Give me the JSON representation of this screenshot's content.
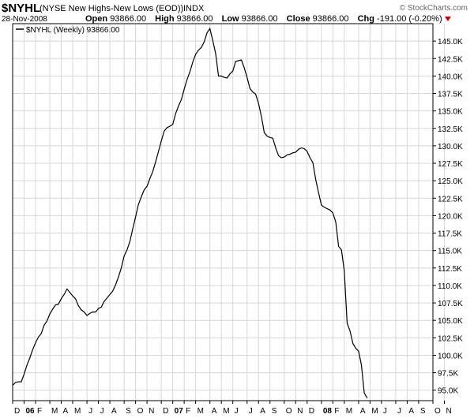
{
  "header": {
    "symbol": "$NYHL",
    "description": "(NYSE New Highs-New Lows (EOD))",
    "exchange": "INDX",
    "source": "© StockCharts.com",
    "date": "28-Nov-2008",
    "open_label": "Open",
    "open_value": "93866.00",
    "high_label": "High",
    "high_value": "93866.00",
    "low_label": "Low",
    "low_value": "93866.00",
    "close_label": "Close",
    "close_value": "93866.00",
    "chg_label": "Chg",
    "chg_value": "-191.00 (-0.20%)"
  },
  "chart_data": {
    "type": "line",
    "legend": "$NYHL (Weekly) 93866.00",
    "legend_position": "top-left",
    "grid": true,
    "ylim": [
      93500,
      147500
    ],
    "yticks": [
      95000,
      97500,
      100000,
      102500,
      105000,
      107500,
      110000,
      112500,
      115000,
      117500,
      120000,
      122500,
      125000,
      127500,
      130000,
      132500,
      135000,
      137500,
      140000,
      142500,
      145000
    ],
    "ytick_labels": [
      "95.0K",
      "97.5K",
      "100.0K",
      "102.5K",
      "105.0K",
      "107.5K",
      "110.0K",
      "112.5K",
      "115.0K",
      "117.5K",
      "120.0K",
      "122.5K",
      "125.0K",
      "127.5K",
      "130.0K",
      "132.5K",
      "135.0K",
      "137.5K",
      "140.0K",
      "142.5K",
      "145.0K"
    ],
    "xlim": [
      0,
      147
    ],
    "month_labels": [
      {
        "label": "D",
        "index": 0
      },
      {
        "label": "06",
        "index": 4,
        "bold": true
      },
      {
        "label": "F",
        "index": 8
      },
      {
        "label": "M",
        "index": 13
      },
      {
        "label": "A",
        "index": 17
      },
      {
        "label": "M",
        "index": 21
      },
      {
        "label": "J",
        "index": 26
      },
      {
        "label": "J",
        "index": 30
      },
      {
        "label": "A",
        "index": 34
      },
      {
        "label": "S",
        "index": 39
      },
      {
        "label": "O",
        "index": 43
      },
      {
        "label": "N",
        "index": 47
      },
      {
        "label": "D",
        "index": 52
      },
      {
        "label": "07",
        "index": 56,
        "bold": true
      },
      {
        "label": "F",
        "index": 60
      },
      {
        "label": "M",
        "index": 64
      },
      {
        "label": "A",
        "index": 69
      },
      {
        "label": "M",
        "index": 73
      },
      {
        "label": "J",
        "index": 77
      },
      {
        "label": "J",
        "index": 82
      },
      {
        "label": "A",
        "index": 86
      },
      {
        "label": "S",
        "index": 90
      },
      {
        "label": "O",
        "index": 95
      },
      {
        "label": "N",
        "index": 99
      },
      {
        "label": "D",
        "index": 103
      },
      {
        "label": "08",
        "index": 108,
        "bold": true
      },
      {
        "label": "F",
        "index": 112
      },
      {
        "label": "M",
        "index": 116
      },
      {
        "label": "A",
        "index": 121
      },
      {
        "label": "M",
        "index": 125
      },
      {
        "label": "J",
        "index": 129
      },
      {
        "label": "J",
        "index": 134
      },
      {
        "label": "A",
        "index": 138
      },
      {
        "label": "S",
        "index": 142
      },
      {
        "label": "O",
        "index": 147
      },
      {
        "label": "N",
        "index": 151
      }
    ],
    "series": [
      {
        "name": "$NYHL (Weekly)",
        "points": [
          [
            0,
            95700
          ],
          [
            1,
            96100
          ],
          [
            2,
            96200
          ],
          [
            3,
            96200
          ],
          [
            4,
            97300
          ],
          [
            5,
            98600
          ],
          [
            6,
            99600
          ],
          [
            7,
            100800
          ],
          [
            8,
            101800
          ],
          [
            9,
            102600
          ],
          [
            10,
            103100
          ],
          [
            11,
            104300
          ],
          [
            12,
            104900
          ],
          [
            13,
            105900
          ],
          [
            14,
            106600
          ],
          [
            15,
            107200
          ],
          [
            16,
            107300
          ],
          [
            17,
            108100
          ],
          [
            18,
            108700
          ],
          [
            19,
            109500
          ],
          [
            20,
            109000
          ],
          [
            21,
            108500
          ],
          [
            22,
            108100
          ],
          [
            23,
            107100
          ],
          [
            24,
            106500
          ],
          [
            25,
            106200
          ],
          [
            26,
            105700
          ],
          [
            27,
            106000
          ],
          [
            28,
            106200
          ],
          [
            29,
            106200
          ],
          [
            30,
            106700
          ],
          [
            31,
            106900
          ],
          [
            32,
            107700
          ],
          [
            33,
            108200
          ],
          [
            34,
            108700
          ],
          [
            35,
            109200
          ],
          [
            36,
            110100
          ],
          [
            37,
            111200
          ],
          [
            38,
            112500
          ],
          [
            39,
            114200
          ],
          [
            40,
            115100
          ],
          [
            41,
            116300
          ],
          [
            42,
            118100
          ],
          [
            43,
            119800
          ],
          [
            44,
            121600
          ],
          [
            45,
            122700
          ],
          [
            46,
            123700
          ],
          [
            47,
            124200
          ],
          [
            48,
            125300
          ],
          [
            49,
            126300
          ],
          [
            50,
            127700
          ],
          [
            51,
            129200
          ],
          [
            52,
            130700
          ],
          [
            53,
            132100
          ],
          [
            54,
            132600
          ],
          [
            55,
            132800
          ],
          [
            56,
            133100
          ],
          [
            57,
            134600
          ],
          [
            58,
            135700
          ],
          [
            59,
            136600
          ],
          [
            60,
            138100
          ],
          [
            61,
            139500
          ],
          [
            62,
            140600
          ],
          [
            63,
            142000
          ],
          [
            64,
            143100
          ],
          [
            65,
            143700
          ],
          [
            66,
            144100
          ],
          [
            67,
            144900
          ],
          [
            68,
            146200
          ],
          [
            69,
            146800
          ],
          [
            70,
            145100
          ],
          [
            71,
            143200
          ],
          [
            72,
            140000
          ],
          [
            73,
            140000
          ],
          [
            74,
            139800
          ],
          [
            75,
            139700
          ],
          [
            76,
            140300
          ],
          [
            77,
            140700
          ],
          [
            78,
            142100
          ],
          [
            79,
            142200
          ],
          [
            80,
            142300
          ],
          [
            81,
            141200
          ],
          [
            82,
            139800
          ],
          [
            83,
            138200
          ],
          [
            84,
            137700
          ],
          [
            85,
            137400
          ],
          [
            86,
            136100
          ],
          [
            87,
            134200
          ],
          [
            88,
            131900
          ],
          [
            89,
            131400
          ],
          [
            90,
            131200
          ],
          [
            91,
            131100
          ],
          [
            92,
            129700
          ],
          [
            93,
            128600
          ],
          [
            94,
            128300
          ],
          [
            95,
            128400
          ],
          [
            96,
            128700
          ],
          [
            97,
            128800
          ],
          [
            98,
            129000
          ],
          [
            99,
            129100
          ],
          [
            100,
            129500
          ],
          [
            101,
            129700
          ],
          [
            102,
            129600
          ],
          [
            103,
            129200
          ],
          [
            104,
            128300
          ],
          [
            105,
            127600
          ],
          [
            106,
            125200
          ],
          [
            107,
            123300
          ],
          [
            108,
            121500
          ],
          [
            109,
            121200
          ],
          [
            110,
            121000
          ],
          [
            111,
            120800
          ],
          [
            112,
            120400
          ],
          [
            113,
            119100
          ],
          [
            114,
            115600
          ],
          [
            115,
            115100
          ],
          [
            116,
            112100
          ],
          [
            117,
            104600
          ],
          [
            118,
            103500
          ],
          [
            119,
            101700
          ],
          [
            120,
            101000
          ],
          [
            121,
            100600
          ],
          [
            122,
            98600
          ],
          [
            123,
            94600
          ],
          [
            124,
            93866
          ]
        ]
      }
    ]
  }
}
